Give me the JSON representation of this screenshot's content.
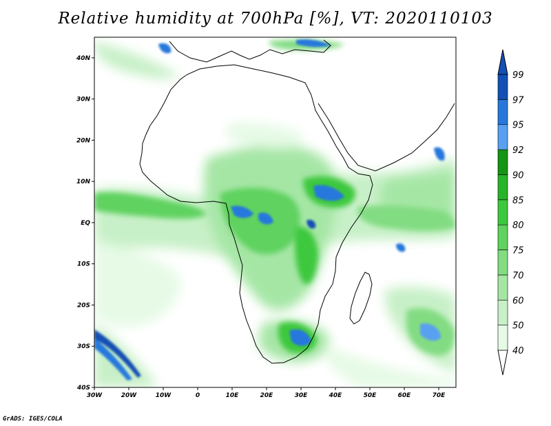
{
  "title": "Relative humidity at 700hPa [%], VT: 2020110103",
  "credit": "GrADS: IGES/COLA",
  "map": {
    "lon_range": [
      -30,
      75
    ],
    "lat_range": [
      -40,
      45
    ],
    "lat_ticks": [
      {
        "value": 40,
        "label": "40N"
      },
      {
        "value": 30,
        "label": "30N"
      },
      {
        "value": 20,
        "label": "20N"
      },
      {
        "value": 10,
        "label": "10N"
      },
      {
        "value": 0,
        "label": "EQ"
      },
      {
        "value": -10,
        "label": "10S"
      },
      {
        "value": -20,
        "label": "20S"
      },
      {
        "value": -30,
        "label": "30S"
      },
      {
        "value": -40,
        "label": "40S"
      }
    ],
    "lon_ticks": [
      {
        "value": -30,
        "label": "30W"
      },
      {
        "value": -20,
        "label": "20W"
      },
      {
        "value": -10,
        "label": "10W"
      },
      {
        "value": 0,
        "label": "0"
      },
      {
        "value": 10,
        "label": "10E"
      },
      {
        "value": 20,
        "label": "20E"
      },
      {
        "value": 30,
        "label": "30E"
      },
      {
        "value": 40,
        "label": "40E"
      },
      {
        "value": 50,
        "label": "50E"
      },
      {
        "value": 60,
        "label": "60E"
      },
      {
        "value": 70,
        "label": "70E"
      }
    ]
  },
  "colorbar": {
    "levels": [
      {
        "label": "40",
        "color": "#ffffff"
      },
      {
        "label": "50",
        "color": "#e6fae6"
      },
      {
        "label": "60",
        "color": "#c8f0c8"
      },
      {
        "label": "70",
        "color": "#a5e6a5"
      },
      {
        "label": "75",
        "color": "#82dc82"
      },
      {
        "label": "80",
        "color": "#5fd25f"
      },
      {
        "label": "85",
        "color": "#3cc83c"
      },
      {
        "label": "90",
        "color": "#28b428"
      },
      {
        "label": "92",
        "color": "#149614"
      },
      {
        "label": "95",
        "color": "#5aa0f0"
      },
      {
        "label": "97",
        "color": "#2878dc"
      },
      {
        "label": "99",
        "color": "#1450b4"
      }
    ]
  }
}
